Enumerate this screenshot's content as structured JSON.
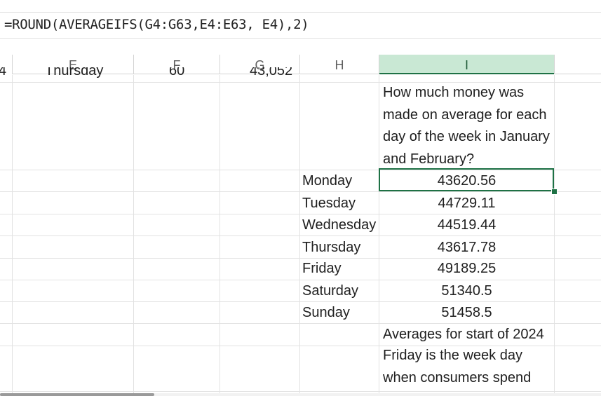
{
  "formula_bar": {
    "formula": "=ROUND(AVERAGEIFS(G4:G63,E4:E63, E4),2)"
  },
  "columns": [
    "E",
    "F",
    "G",
    "H",
    "I"
  ],
  "partial_row": {
    "d": "4",
    "e": "Thursday",
    "f": "60",
    "g": "43,052"
  },
  "question_lines": [
    "How much money was",
    "made on average for each",
    "day of the week in January",
    "and February?"
  ],
  "days": [
    {
      "day": "Monday",
      "avg": "43620.56"
    },
    {
      "day": "Tuesday",
      "avg": "44729.11"
    },
    {
      "day": "Wednesday",
      "avg": "44519.44"
    },
    {
      "day": "Thursday",
      "avg": "43617.78"
    },
    {
      "day": "Friday",
      "avg": "49189.25"
    },
    {
      "day": "Saturday",
      "avg": "51340.5"
    },
    {
      "day": "Sunday",
      "avg": "51458.5"
    }
  ],
  "note_lines": [
    "Averages for start of 2024",
    "Friday is the week day",
    "when consumers spend"
  ]
}
